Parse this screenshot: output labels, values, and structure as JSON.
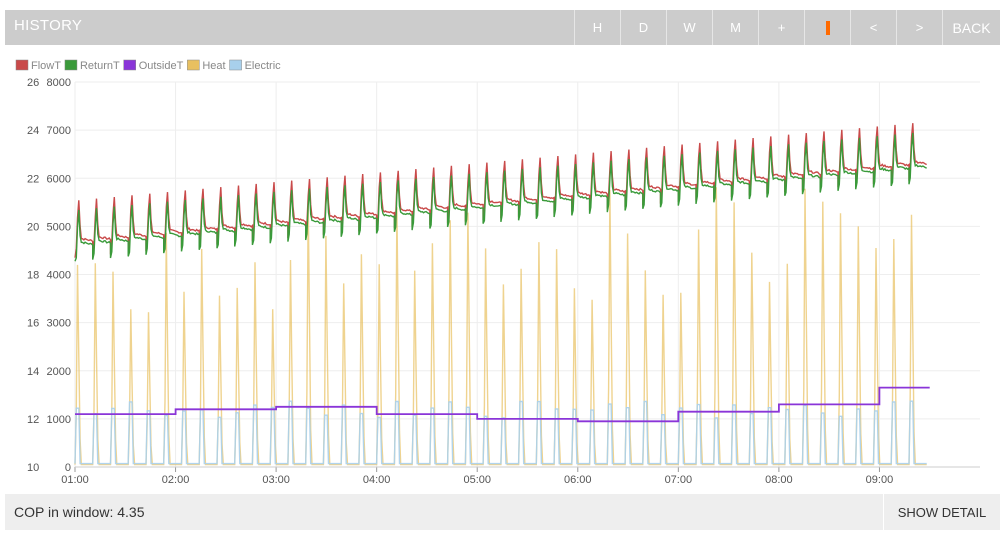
{
  "header": {
    "title": "HISTORY",
    "buttons": [
      {
        "label": "H"
      },
      {
        "label": "D"
      },
      {
        "label": "W"
      },
      {
        "label": "M"
      },
      {
        "label": "+"
      },
      {
        "label": "",
        "icon": "warning-bar-icon"
      },
      {
        "label": "<"
      },
      {
        "label": ">"
      },
      {
        "label": "BACK"
      }
    ]
  },
  "footer": {
    "cop_label": "COP in window:",
    "cop_value": "4.35",
    "show_detail": "SHOW DETAIL"
  },
  "chart_data": {
    "type": "line",
    "legend": [
      {
        "name": "FlowT",
        "color": "#c94a4a"
      },
      {
        "name": "ReturnT",
        "color": "#3a9a3a"
      },
      {
        "name": "OutsideT",
        "color": "#8a35d8"
      },
      {
        "name": "Heat",
        "color": "#e8c060"
      },
      {
        "name": "Electric",
        "color": "#a8d0ec"
      }
    ],
    "legend_position": "top-left",
    "x_ticks": [
      "01:00",
      "02:00",
      "03:00",
      "04:00",
      "05:00",
      "06:00",
      "07:00",
      "08:00",
      "09:00"
    ],
    "x_range_hours": [
      1.0,
      10.0
    ],
    "y_left": {
      "range": [
        10,
        26
      ],
      "ticks": [
        "10",
        "12",
        "14",
        "16",
        "18",
        "20",
        "22",
        "24",
        "26"
      ]
    },
    "y_right": {
      "range": [
        0,
        8000
      ],
      "ticks": [
        "0",
        "1000",
        "2000",
        "3000",
        "4000",
        "5000",
        "6000",
        "7000",
        "8000"
      ]
    },
    "grid": true,
    "outside_temp_steps": [
      {
        "from": 1.0,
        "to": 2.0,
        "value": 12.2
      },
      {
        "from": 2.0,
        "to": 3.0,
        "value": 12.4
      },
      {
        "from": 3.0,
        "to": 4.0,
        "value": 12.5
      },
      {
        "from": 4.0,
        "to": 5.0,
        "value": 12.2
      },
      {
        "from": 5.0,
        "to": 6.0,
        "value": 12.0
      },
      {
        "from": 6.0,
        "to": 7.0,
        "value": 11.9
      },
      {
        "from": 7.0,
        "to": 8.0,
        "value": 12.3
      },
      {
        "from": 8.0,
        "to": 9.0,
        "value": 12.6
      },
      {
        "from": 9.0,
        "to": 9.5,
        "value": 13.3
      }
    ],
    "flow_temp_baseline": {
      "start": 19.4,
      "end": 22.6
    },
    "cycle_count": 48,
    "heat_peak_range": [
      3500,
      6200
    ],
    "electric_peak_approx": 1200
  }
}
